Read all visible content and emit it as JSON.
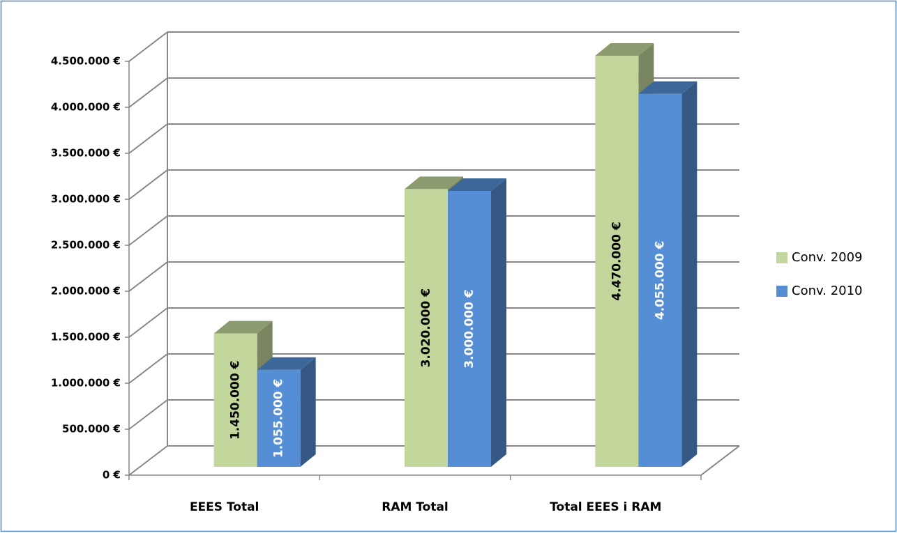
{
  "chart_data": {
    "type": "bar3d",
    "categories": [
      "EEES Total",
      "RAM Total",
      "Total EEES i RAM"
    ],
    "series": [
      {
        "name": "Conv. 2009",
        "color": "#c3d69b",
        "values": [
          1450000,
          3020000,
          4470000
        ],
        "value_labels": [
          "1.450.000 €",
          "3.020.000 €",
          "4.470.000 €"
        ]
      },
      {
        "name": "Conv. 2010",
        "color": "#558ed5",
        "values": [
          1055000,
          3000000,
          4055000
        ],
        "value_labels": [
          "1.055.000 €",
          "3.000.000 €",
          "4.055.000 €"
        ]
      }
    ],
    "ylim": [
      0,
      4500000
    ],
    "yticks": [
      {
        "value": 0,
        "label": "0 €"
      },
      {
        "value": 500000,
        "label": "500.000 €"
      },
      {
        "value": 1000000,
        "label": "1.000.000 €"
      },
      {
        "value": 1500000,
        "label": "1.500.000 €"
      },
      {
        "value": 2000000,
        "label": "2.000.000 €"
      },
      {
        "value": 2500000,
        "label": "2.500.000 €"
      },
      {
        "value": 3000000,
        "label": "3.000.000 €"
      },
      {
        "value": 3500000,
        "label": "3.500.000 €"
      },
      {
        "value": 4000000,
        "label": "4.000.000 €"
      },
      {
        "value": 4500000,
        "label": "4.500.000 €"
      }
    ],
    "grid": true,
    "legend": "right"
  }
}
